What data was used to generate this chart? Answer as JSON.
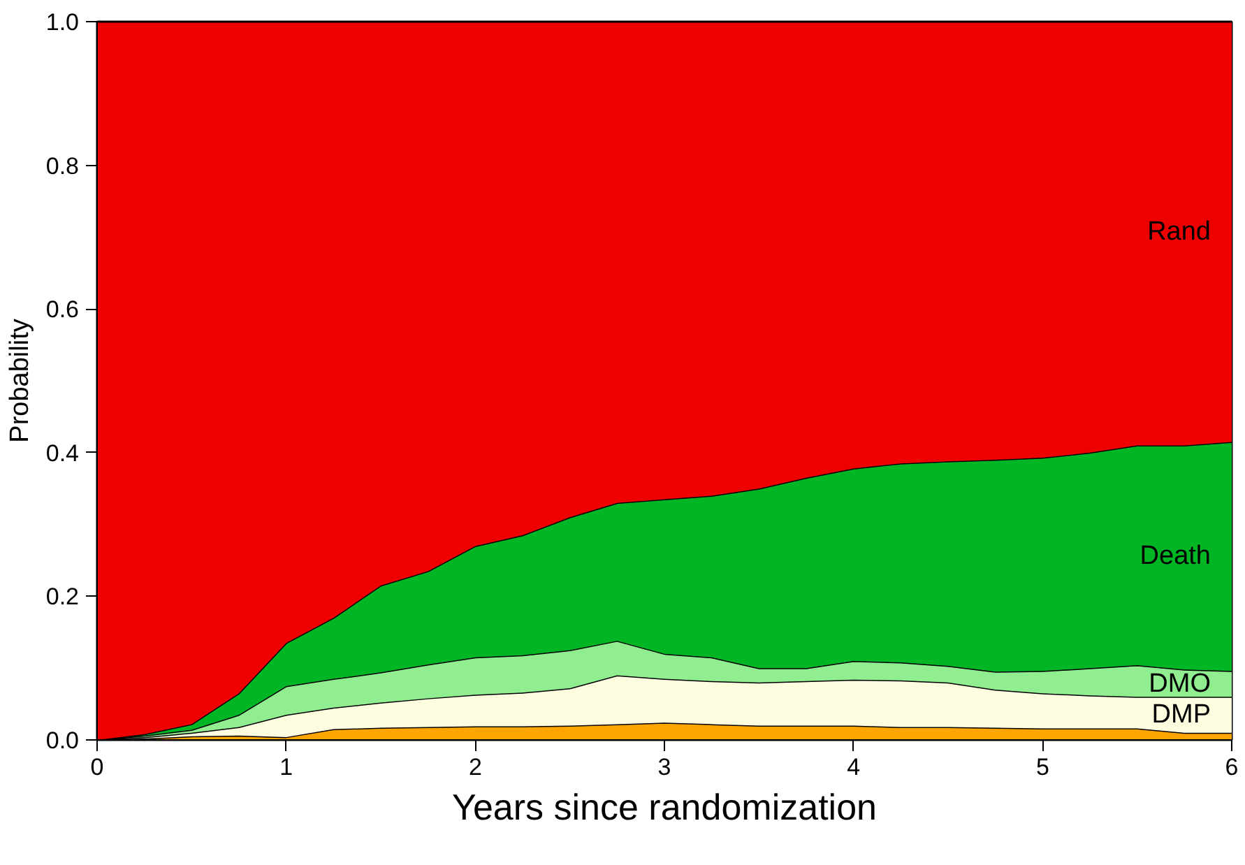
{
  "chart_data": {
    "type": "area",
    "stacked": true,
    "xlabel": "Years since randomization",
    "ylabel": "Probability",
    "x": [
      0,
      0.25,
      0.5,
      0.75,
      1,
      1.25,
      1.5,
      1.75,
      2,
      2.25,
      2.5,
      2.75,
      3,
      3.25,
      3.5,
      3.75,
      4,
      4.25,
      4.5,
      4.75,
      5,
      5.25,
      5.5,
      5.75,
      6
    ],
    "series": [
      {
        "color": "#ffa500",
        "values": [
          0,
          0.002,
          0.005,
          0.006,
          0.004,
          0.015,
          0.017,
          0.018,
          0.019,
          0.019,
          0.02,
          0.022,
          0.024,
          0.022,
          0.02,
          0.02,
          0.02,
          0.018,
          0.018,
          0.017,
          0.016,
          0.016,
          0.016,
          0.01,
          0.01
        ]
      },
      {
        "name": "DMP",
        "color": "#fffde0",
        "values": [
          0,
          0.002,
          0.005,
          0.012,
          0.031,
          0.03,
          0.035,
          0.04,
          0.044,
          0.047,
          0.052,
          0.068,
          0.061,
          0.06,
          0.06,
          0.062,
          0.064,
          0.065,
          0.062,
          0.053,
          0.049,
          0.046,
          0.044,
          0.05,
          0.05
        ]
      },
      {
        "name": "DMO",
        "color": "#90ee90",
        "values": [
          0,
          0.002,
          0.004,
          0.017,
          0.04,
          0.04,
          0.042,
          0.047,
          0.052,
          0.052,
          0.053,
          0.048,
          0.035,
          0.033,
          0.02,
          0.018,
          0.026,
          0.025,
          0.023,
          0.025,
          0.031,
          0.038,
          0.044,
          0.038,
          0.036
        ]
      },
      {
        "name": "Death",
        "color": "#00b624",
        "values": [
          0,
          0.002,
          0.008,
          0.03,
          0.06,
          0.085,
          0.121,
          0.13,
          0.155,
          0.167,
          0.185,
          0.192,
          0.215,
          0.225,
          0.25,
          0.265,
          0.268,
          0.277,
          0.285,
          0.295,
          0.297,
          0.3,
          0.306,
          0.312,
          0.319
        ]
      },
      {
        "name": "Rand",
        "color": "#ee0000",
        "values": [
          1,
          0.992,
          0.978,
          0.935,
          0.865,
          0.83,
          0.785,
          0.765,
          0.73,
          0.715,
          0.69,
          0.67,
          0.665,
          0.66,
          0.65,
          0.635,
          0.622,
          0.615,
          0.612,
          0.61,
          0.607,
          0.6,
          0.59,
          0.59,
          0.585
        ]
      }
    ],
    "xlim": [
      0,
      6
    ],
    "ylim": [
      0,
      1
    ],
    "xticks": [
      0,
      1,
      2,
      3,
      4,
      5,
      6
    ],
    "yticks": [
      {
        "value": 0,
        "label": "0.0"
      },
      {
        "value": 0.2,
        "label": "0.2"
      },
      {
        "value": 0.4,
        "label": "0.4"
      },
      {
        "value": 0.6,
        "label": "0.6"
      },
      {
        "value": 0.8,
        "label": "0.8"
      },
      {
        "value": 1,
        "label": "1.0"
      }
    ]
  }
}
